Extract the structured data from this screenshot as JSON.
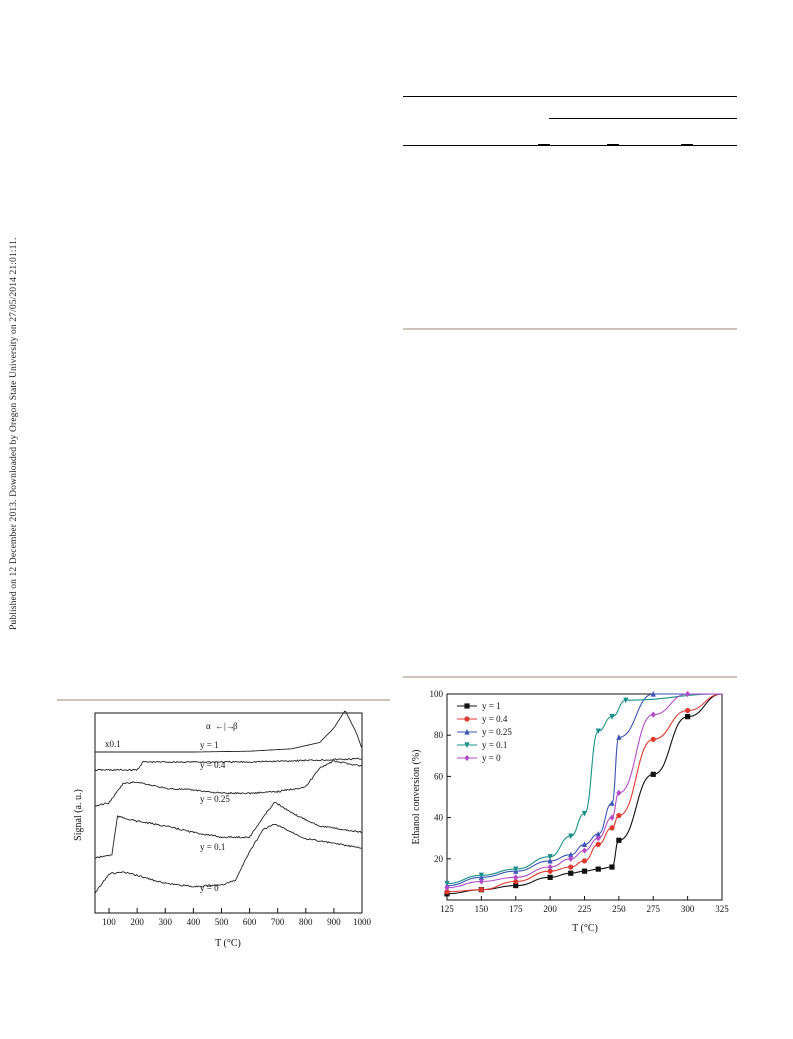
{
  "side_note": "Published on 12 December 2013. Downloaded by Oregon State University on 27/05/2014 21:01:11.",
  "figures": {
    "tpd": {
      "ylabel": "Signal (a. u.)",
      "xlabel": "T (°C)",
      "x_ticks": [
        "100",
        "200",
        "300",
        "400",
        "500",
        "600",
        "700",
        "800",
        "900",
        "1000"
      ],
      "scale_label": "x0.1",
      "transition_label": "α",
      "transition_label_right": "β",
      "curve_labels": [
        "y = 1",
        "y = 0.4",
        "y = 0.25",
        "y = 0.1",
        "y = 0"
      ]
    }
  },
  "chart_data": [
    {
      "type": "line",
      "xlabel": "T (°C)",
      "ylabel": "Signal (a. u.)",
      "xlim": [
        50,
        1000
      ],
      "series": [
        {
          "name": "y = 1",
          "x": [
            50,
            200,
            400,
            600,
            750,
            850,
            900,
            940,
            980,
            1000
          ],
          "y": [
            1,
            1,
            1,
            1.05,
            1.2,
            1.6,
            2.5,
            3.6,
            2.2,
            1.2
          ]
        },
        {
          "name": "y = 0.4",
          "x": [
            50,
            200,
            220,
            400,
            600,
            800,
            1000
          ],
          "y": [
            1,
            1,
            1.5,
            1.5,
            1.5,
            1.6,
            1.7
          ]
        },
        {
          "name": "y = 0.25",
          "x": [
            50,
            100,
            150,
            200,
            300,
            400,
            500,
            600,
            700,
            800,
            850,
            900,
            1000
          ],
          "y": [
            1,
            1.2,
            2.4,
            2.5,
            2.1,
            2.0,
            1.8,
            1.8,
            1.9,
            2.2,
            3.4,
            3.8,
            3.5
          ]
        },
        {
          "name": "y = 0.1",
          "x": [
            50,
            110,
            130,
            200,
            300,
            400,
            500,
            600,
            650,
            690,
            750,
            850,
            1000
          ],
          "y": [
            1,
            1.2,
            3.6,
            3.3,
            3.0,
            2.6,
            2.3,
            2.3,
            3.6,
            4.5,
            3.8,
            3.0,
            2.6
          ]
        },
        {
          "name": "y = 0",
          "x": [
            50,
            100,
            150,
            200,
            300,
            400,
            500,
            550,
            600,
            650,
            690,
            800,
            1000
          ],
          "y": [
            1,
            2.2,
            2.3,
            2.1,
            1.6,
            1.4,
            1.5,
            1.8,
            3.6,
            5.0,
            5.3,
            4.4,
            3.8
          ]
        }
      ]
    },
    {
      "type": "scatter",
      "xlabel": "T (°C)",
      "ylabel": "Ethanol conversion (%)",
      "xlim": [
        125,
        325
      ],
      "ylim": [
        0,
        100
      ],
      "x_ticks": [
        125,
        150,
        175,
        200,
        225,
        250,
        275,
        300,
        325
      ],
      "y_ticks": [
        20,
        40,
        60,
        80,
        100
      ],
      "legend_position": "top-left",
      "series": [
        {
          "name": "y = 1",
          "color": "#111111",
          "marker": "square",
          "x": [
            125,
            150,
            175,
            200,
            215,
            225,
            235,
            245,
            250,
            275,
            300
          ],
          "y": [
            3,
            5,
            7,
            11,
            13,
            14,
            15,
            16,
            29,
            61,
            89
          ]
        },
        {
          "name": "y = 0.4",
          "color": "#e03a2f",
          "marker": "circle",
          "x": [
            125,
            150,
            175,
            200,
            215,
            225,
            235,
            245,
            250,
            275,
            300
          ],
          "y": [
            4,
            5,
            9,
            14,
            16,
            19,
            27,
            35,
            41,
            78,
            92
          ]
        },
        {
          "name": "y = 0.25",
          "color": "#3a55b5",
          "marker": "triangle-up",
          "x": [
            125,
            150,
            175,
            200,
            215,
            225,
            235,
            245,
            250,
            275
          ],
          "y": [
            7,
            11,
            14,
            19,
            22,
            27,
            32,
            47,
            79,
            100
          ]
        },
        {
          "name": "y = 0.1",
          "color": "#19918a",
          "marker": "triangle-down",
          "x": [
            125,
            150,
            175,
            200,
            215,
            225,
            235,
            245,
            255
          ],
          "y": [
            8,
            12,
            15,
            21,
            31,
            42,
            82,
            89,
            97
          ]
        },
        {
          "name": "y = 0",
          "color": "#b24cc8",
          "marker": "diamond",
          "x": [
            125,
            150,
            175,
            200,
            215,
            225,
            235,
            245,
            250,
            275,
            300
          ],
          "y": [
            6,
            9,
            11,
            16,
            20,
            24,
            30,
            40,
            52,
            90,
            100
          ]
        }
      ]
    }
  ]
}
